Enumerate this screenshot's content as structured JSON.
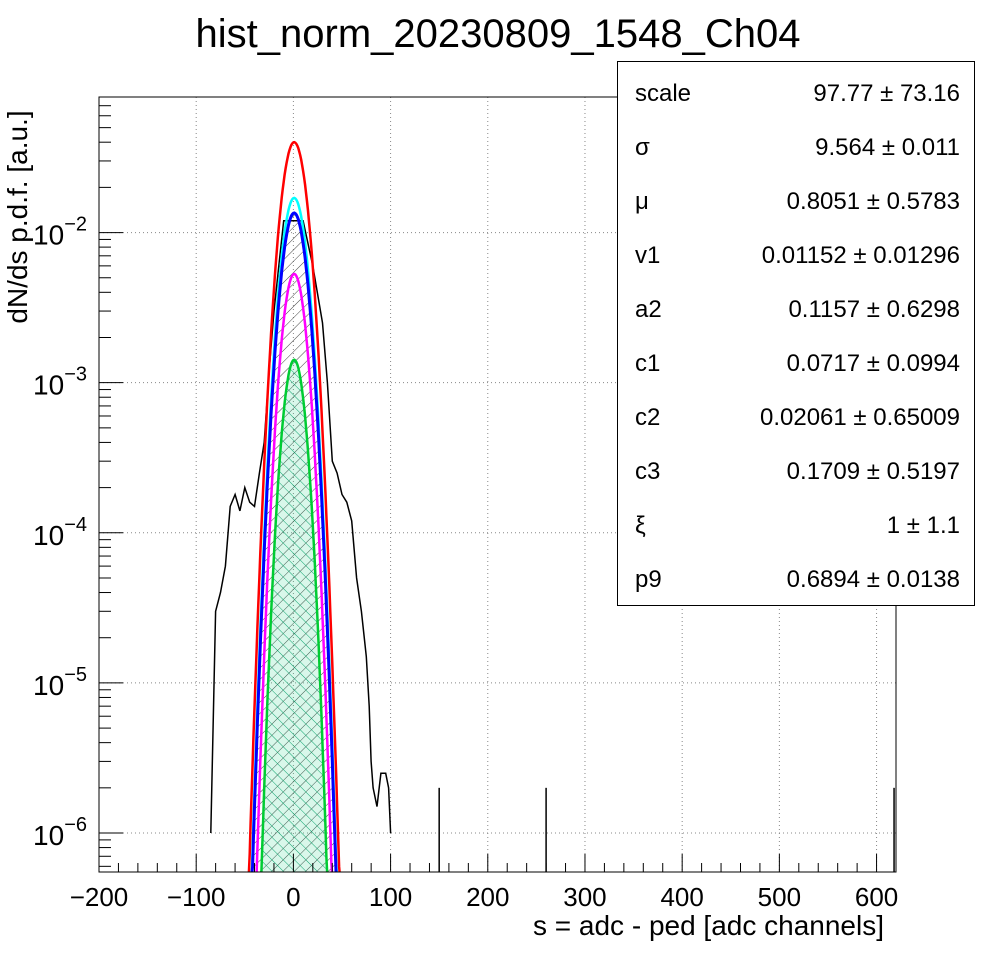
{
  "chart_data": {
    "type": "line",
    "title": "hist_norm_20230809_1548_Ch04",
    "xlabel": "s = adc - ped [adc channels]",
    "ylabel": "dN/ds p.d.f. [a.u.]",
    "x_scale": "linear",
    "y_scale": "log",
    "xlim": [
      -200,
      620
    ],
    "ylim": [
      5.5e-07,
      0.08
    ],
    "grid": true,
    "x_ticks": [
      "−200",
      "−100",
      "0",
      "100",
      "200",
      "300",
      "400",
      "500",
      "600"
    ],
    "y_ticks": [
      {
        "base": "10",
        "exp": "−2",
        "value": 0.01
      },
      {
        "base": "10",
        "exp": "−3",
        "value": 0.001
      },
      {
        "base": "10",
        "exp": "−4",
        "value": 0.0001
      },
      {
        "base": "10",
        "exp": "−5",
        "value": 1e-05
      },
      {
        "base": "10",
        "exp": "−6",
        "value": 1e-06
      }
    ],
    "series": [
      {
        "color": "#000000",
        "kind": "histogram",
        "x": [
          -85,
          -80,
          -75,
          -70,
          -65,
          -60,
          -55,
          -50,
          -45,
          -40,
          -35,
          -30,
          -25,
          -20,
          -15,
          -10,
          10,
          20,
          30,
          35,
          40,
          45,
          50,
          55,
          60,
          65,
          70,
          75,
          78,
          80,
          82,
          86,
          90,
          95,
          98,
          100,
          150,
          260,
          618
        ],
        "y": [
          1e-06,
          3e-05,
          4e-05,
          6e-05,
          0.00015,
          0.00018,
          0.00014,
          0.0002,
          0.00016,
          0.00015,
          0.00025,
          0.0004,
          0.0012,
          0.003,
          0.006,
          0.012,
          0.012,
          0.006,
          0.0025,
          0.001,
          0.0003,
          0.00025,
          0.00018,
          0.00016,
          0.00012,
          5e-05,
          3e-05,
          1.5e-05,
          7e-06,
          3e-06,
          2e-06,
          1.5e-06,
          2.5e-06,
          2.5e-06,
          2e-06,
          1e-06,
          2e-06,
          2e-06,
          2e-06
        ]
      },
      {
        "color": "#ff0000",
        "kind": "gaussian",
        "amp": 0.04,
        "mu": 0.8,
        "sigma": 9.8
      },
      {
        "color": "#00ffff",
        "kind": "gaussian",
        "amp": 0.017,
        "mu": 0.8,
        "sigma": 9.56
      },
      {
        "color": "#0000ff",
        "kind": "gaussian",
        "amp": 0.0135,
        "mu": 0.8,
        "sigma": 9.56
      },
      {
        "color": "#ff00ff",
        "kind": "gaussian",
        "amp": 0.0053,
        "mu": 0.8,
        "sigma": 9.0
      },
      {
        "color": "#00cc33",
        "kind": "gaussian",
        "amp": 0.00142,
        "mu": 0.8,
        "sigma": 8.5
      }
    ],
    "stats": [
      {
        "name": "scale",
        "value": "97.77 ± 73.16"
      },
      {
        "name": "σ",
        "value": "9.564 ± 0.011"
      },
      {
        "name": "μ",
        "value": "0.8051 ± 0.5783"
      },
      {
        "name": "v1",
        "value": "0.01152 ± 0.01296"
      },
      {
        "name": "a2",
        "value": "0.1157 ± 0.6298"
      },
      {
        "name": "c1",
        "value": "0.0717 ± 0.0994"
      },
      {
        "name": "c2",
        "value": "0.02061 ± 0.65009"
      },
      {
        "name": "c3",
        "value": "0.1709 ± 0.5197"
      },
      {
        "name": "ξ",
        "value": "1 ± 1.1"
      },
      {
        "name": "p9",
        "value": "0.6894 ± 0.0138"
      }
    ]
  }
}
